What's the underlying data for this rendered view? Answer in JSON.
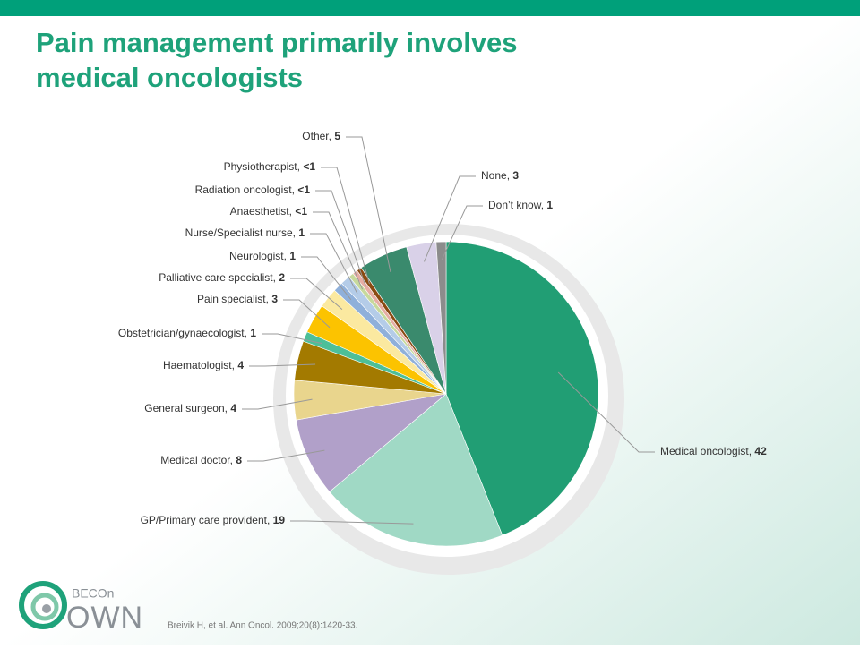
{
  "chart_data": {
    "type": "pie",
    "title": "Pain management primarily involves medical oncologists",
    "categories": [
      "Medical oncologist",
      "GP/Primary care provident",
      "Medical doctor",
      "General surgeon",
      "Haematologist",
      "Obstetrician/gynaecologist",
      "Pain specialist",
      "Palliative care specialist",
      "Neurologist",
      "Nurse/Specialist nurse",
      "Anaesthetist",
      "Radiation oncologist",
      "Physiotherapist",
      "Other",
      "None",
      "Don’t know"
    ],
    "values": [
      42,
      19,
      8,
      4,
      4,
      1,
      3,
      2,
      1,
      1,
      0.5,
      0.5,
      0.5,
      5,
      3,
      1
    ],
    "value_labels": [
      "42",
      "19",
      "8",
      "4",
      "4",
      "1",
      "3",
      "2",
      "1",
      "1",
      "<1",
      "<1",
      "<1",
      "5",
      "3",
      "1"
    ],
    "colors": [
      "#219e74",
      "#a0d9c5",
      "#b1a0c9",
      "#e9d58d",
      "#a37a00",
      "#4dbf98",
      "#fcc300",
      "#fbe9a0",
      "#8fb0da",
      "#b4cce8",
      "#c7d99c",
      "#e6ada4",
      "#8a4a12",
      "#3a8a6d",
      "#d9d1e8",
      "#8c8c8c"
    ]
  },
  "footnote": "Breivik H, et al. Ann Oncol. 2009;20(8):1420-33.",
  "logo": {
    "top": "BECOn",
    "bottom": "OWN"
  }
}
